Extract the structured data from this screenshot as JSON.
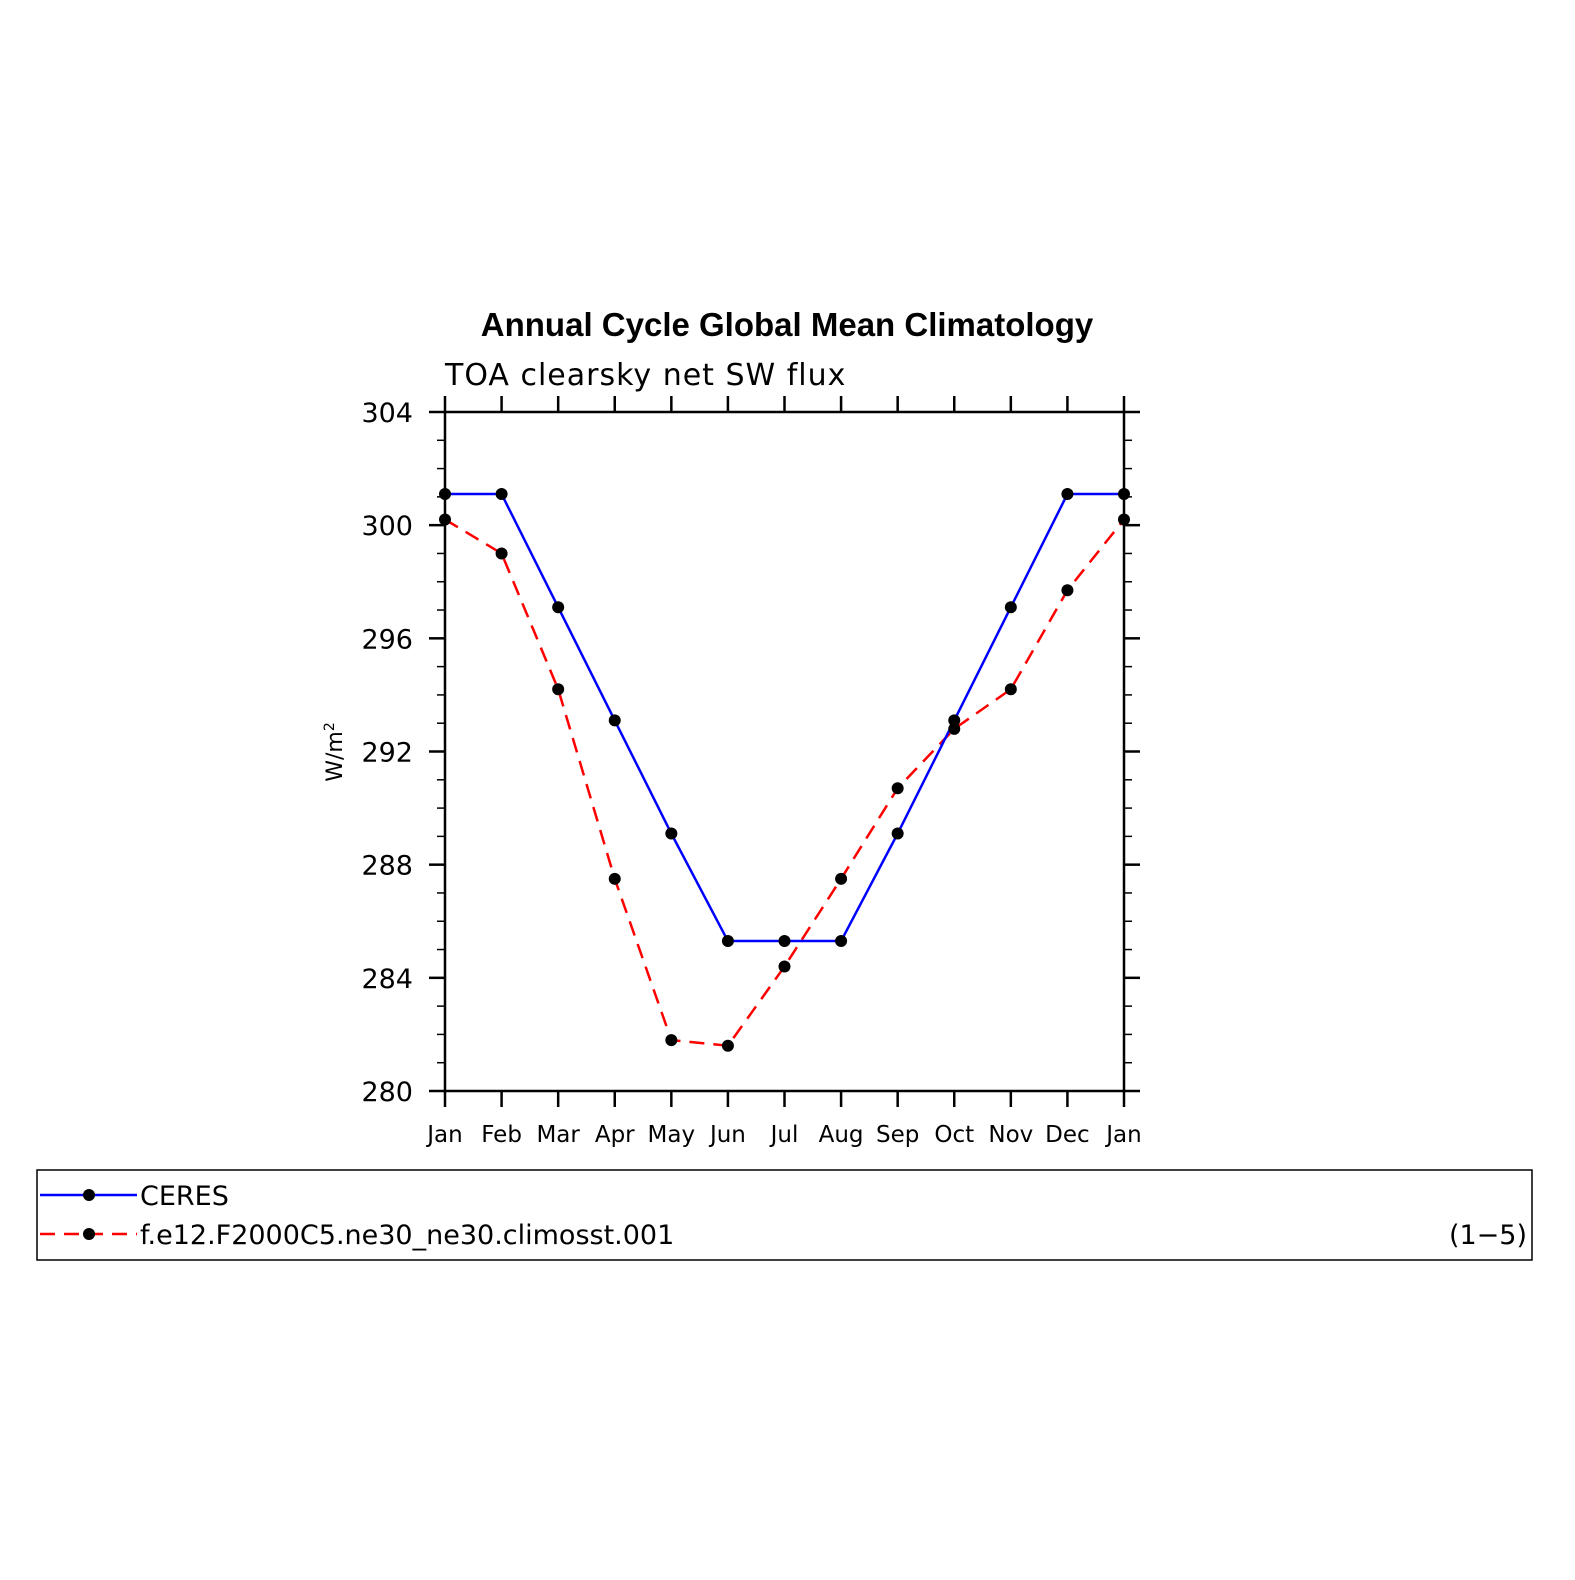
{
  "chart_data": {
    "type": "line",
    "title": "Annual Cycle Global Mean Climatology",
    "subtitle": "TOA clearsky net SW flux",
    "ylabel": "W/m",
    "ylabel_superscript": "2",
    "categories": [
      "Jan",
      "Feb",
      "Mar",
      "Apr",
      "May",
      "Jun",
      "Jul",
      "Aug",
      "Sep",
      "Oct",
      "Nov",
      "Dec",
      "Jan"
    ],
    "ylim": [
      280,
      304
    ],
    "yticks": [
      280,
      284,
      288,
      292,
      296,
      300,
      304
    ],
    "ytick_labels": [
      "280",
      "284",
      "288",
      "292",
      "296",
      "300",
      "304"
    ],
    "y_minor_step": 1,
    "series": [
      {
        "name": "CERES",
        "color": "#0000ff",
        "linestyle": "solid",
        "marker": "dot",
        "values": [
          301.1,
          301.1,
          297.1,
          293.1,
          289.1,
          285.3,
          285.3,
          285.3,
          289.1,
          293.1,
          297.1,
          301.1,
          301.1
        ]
      },
      {
        "name": "f.e12.F2000C5.ne30_ne30.climosst.001",
        "color": "#ff0000",
        "linestyle": "dashed",
        "marker": "dot",
        "values": [
          300.2,
          299.0,
          294.2,
          287.5,
          281.8,
          281.6,
          284.4,
          287.5,
          290.7,
          292.8,
          294.2,
          297.7,
          300.2
        ]
      }
    ],
    "legend_note": "(1−5)",
    "legend_placement": "bottom"
  }
}
